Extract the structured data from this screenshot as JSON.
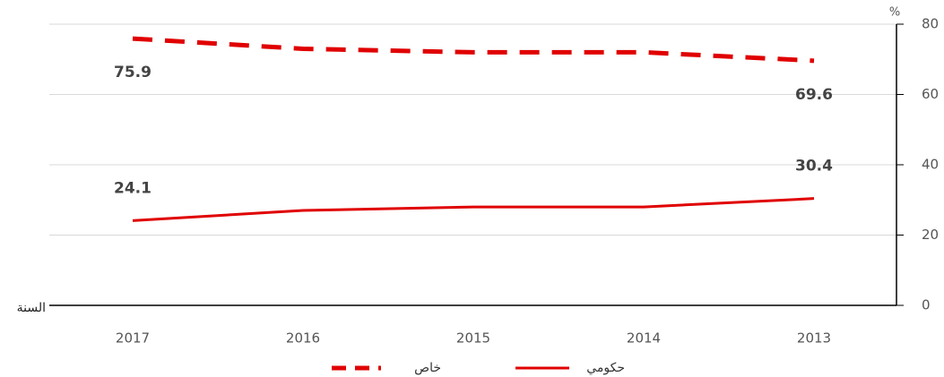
{
  "chart_data": {
    "type": "line",
    "categories": [
      "2017",
      "2016",
      "2015",
      "2014",
      "2013"
    ],
    "x_label": "السنة",
    "y_label": "%",
    "series": [
      {
        "name": "خاص",
        "color": "#e00000",
        "dash": true,
        "values": [
          75.9,
          73,
          72,
          72,
          69.6
        ],
        "value_labels": [
          "75.9",
          null,
          null,
          null,
          "69.6"
        ]
      },
      {
        "name": "حكومي",
        "color": "#e00000",
        "dash": false,
        "values": [
          24.1,
          27,
          28,
          28,
          30.4
        ],
        "value_labels": [
          "24.1",
          null,
          null,
          null,
          "30.4"
        ]
      }
    ],
    "ylim": [
      0,
      80
    ],
    "yticks": [
      0,
      20,
      40,
      60,
      80
    ],
    "grid": true,
    "y_axis_side": "right",
    "legend": "bottom"
  }
}
